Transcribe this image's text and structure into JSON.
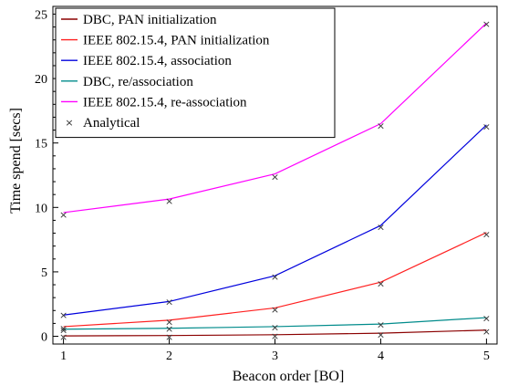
{
  "chart_data": {
    "type": "line",
    "title": "",
    "xlabel": "Beacon order [BO]",
    "ylabel": "Time spend [secs]",
    "x": [
      1,
      2,
      3,
      4,
      5
    ],
    "xticks": [
      1,
      2,
      3,
      4,
      5
    ],
    "yticks": [
      0,
      5,
      10,
      15,
      20,
      25
    ],
    "xlim": [
      0.9,
      5.1
    ],
    "ylim": [
      -0.6,
      25.6
    ],
    "grid": false,
    "legend": "top-left",
    "series": [
      {
        "name": "DBC, PAN initialization",
        "color": "#8b0000",
        "values": [
          0.03,
          0.06,
          0.12,
          0.24,
          0.48
        ],
        "analytical": [
          -0.05,
          -0.02,
          0.04,
          0.16,
          0.4
        ]
      },
      {
        "name": "IEEE 802.15.4, PAN initialization",
        "color": "#ff2020",
        "values": [
          0.75,
          1.25,
          2.2,
          4.2,
          8.05
        ],
        "analytical": [
          0.65,
          1.15,
          2.1,
          4.1,
          7.95
        ]
      },
      {
        "name": "IEEE 802.15.4, association",
        "color": "#0000dd",
        "values": [
          1.65,
          2.7,
          4.7,
          8.6,
          16.4
        ],
        "analytical": [
          1.65,
          2.7,
          4.65,
          8.5,
          16.3
        ]
      },
      {
        "name": "DBC, re/association",
        "color": "#008b8b",
        "values": [
          0.55,
          0.62,
          0.75,
          0.95,
          1.45
        ],
        "analytical": [
          0.5,
          0.6,
          0.72,
          0.92,
          1.42
        ]
      },
      {
        "name": "IEEE 802.15.4, re-association",
        "color": "#ff00ff",
        "values": [
          9.6,
          10.65,
          12.6,
          16.5,
          24.3
        ],
        "analytical": [
          9.45,
          10.5,
          12.4,
          16.35,
          24.25
        ]
      }
    ],
    "markers": {
      "name": "Analytical",
      "symbol": "×",
      "color": "#333333"
    }
  }
}
